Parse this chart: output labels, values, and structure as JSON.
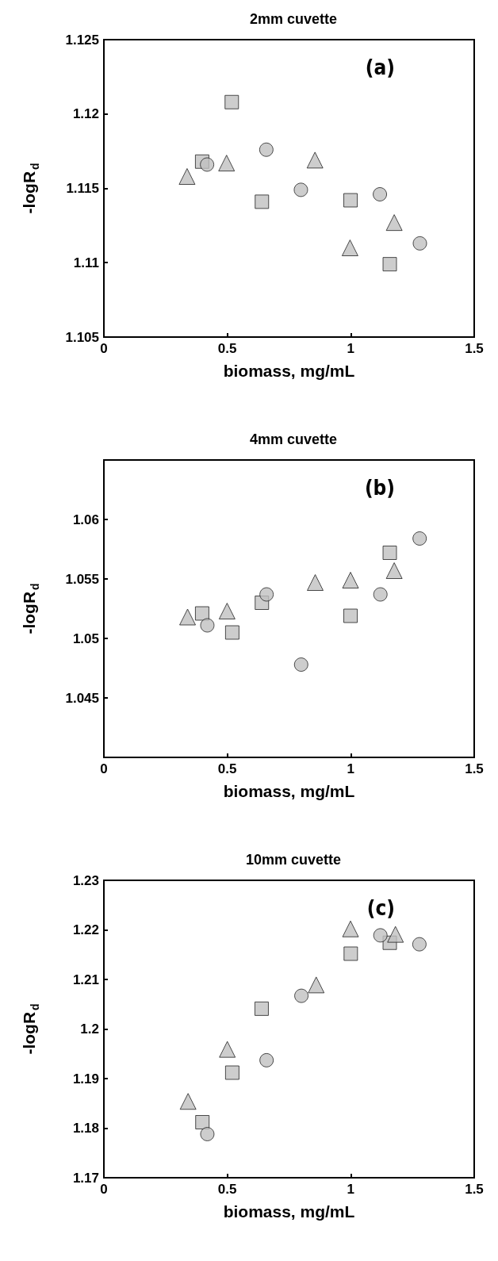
{
  "chart_data": [
    {
      "type": "scatter",
      "title": "2mm cuvette",
      "xlabel": "biomass, mg/mL",
      "ylabel": "-logR$_{d}$",
      "annotations": [
        "(a)"
      ],
      "xlim": [
        0,
        1.5
      ],
      "xticks": [
        0,
        0.5,
        1,
        1.5
      ],
      "ylim": [
        1.105,
        1.125
      ],
      "yticks": [
        1.105,
        1.11,
        1.115,
        1.12,
        1.125
      ],
      "grid": false,
      "series": [
        {
          "color": "#c0c0c0",
          "marker": "square",
          "x": [
            0.398,
            0.518,
            0.64,
            0.999,
            1.158
          ],
          "values": [
            1.1168,
            1.1208,
            1.1141,
            1.1142,
            1.1099
          ]
        },
        {
          "color": "#c0c0c0",
          "marker": "circle",
          "x": [
            0.418,
            0.658,
            0.798,
            1.118,
            1.28
          ],
          "values": [
            1.1166,
            1.1176,
            1.1149,
            1.1146,
            1.1113
          ]
        },
        {
          "color": "#c0c0c0",
          "marker": "triangle",
          "x": [
            0.337,
            0.497,
            0.855,
            0.997,
            1.176
          ],
          "values": [
            1.1158,
            1.1167,
            1.1169,
            1.111,
            1.1127
          ]
        }
      ]
    },
    {
      "type": "scatter",
      "title": "4mm cuvette",
      "xlabel": "biomass, mg/mL",
      "ylabel": "-logR$_{d}$",
      "annotations": [
        "(b)"
      ],
      "xlim": [
        0,
        1.5
      ],
      "xticks": [
        0,
        0.5,
        1,
        1.5
      ],
      "ylim": [
        1.04,
        1.065
      ],
      "yticks": [
        1.045,
        1.05,
        1.055,
        1.06
      ],
      "grid": false,
      "series": [
        {
          "color": "#c0c0c0",
          "marker": "square",
          "x": [
            0.398,
            0.52,
            0.64,
            0.999,
            1.158
          ],
          "values": [
            1.0521,
            1.0505,
            1.053,
            1.0519,
            1.0572
          ]
        },
        {
          "color": "#c0c0c0",
          "marker": "circle",
          "x": [
            0.419,
            0.659,
            0.799,
            1.12,
            1.279
          ],
          "values": [
            1.0511,
            1.0537,
            1.0478,
            1.0537,
            1.0584
          ]
        },
        {
          "color": "#c0c0c0",
          "marker": "triangle",
          "x": [
            0.339,
            0.499,
            0.856,
            0.999,
            1.176
          ],
          "values": [
            1.0518,
            1.0523,
            1.0547,
            1.0549,
            1.0557
          ]
        }
      ]
    },
    {
      "type": "scatter",
      "title": "10mm cuvette",
      "xlabel": "biomass, mg/mL",
      "ylabel": "-logR$_{d}$",
      "annotations": [
        "(c)"
      ],
      "xlim": [
        0,
        1.5
      ],
      "xticks": [
        0,
        0.5,
        1,
        1.5
      ],
      "ylim": [
        1.17,
        1.23
      ],
      "yticks": [
        1.17,
        1.18,
        1.19,
        1.2,
        1.21,
        1.22,
        1.23
      ],
      "grid": false,
      "series": [
        {
          "color": "#c0c0c0",
          "marker": "square",
          "x": [
            0.399,
            0.52,
            0.639,
            1.0,
            1.158
          ],
          "values": [
            1.1812,
            1.1912,
            1.2041,
            1.2152,
            1.2174
          ]
        },
        {
          "color": "#c0c0c0",
          "marker": "circle",
          "x": [
            0.419,
            0.659,
            0.8,
            1.12,
            1.278
          ],
          "values": [
            1.1788,
            1.1937,
            1.2067,
            1.2189,
            1.2171
          ]
        },
        {
          "color": "#c0c0c0",
          "marker": "triangle",
          "x": [
            0.341,
            0.5,
            0.86,
            0.999,
            1.181
          ],
          "values": [
            1.1854,
            1.1959,
            1.2089,
            1.2202,
            1.2191
          ]
        }
      ]
    }
  ]
}
